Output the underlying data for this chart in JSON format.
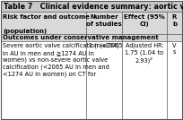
{
  "title": "Table 7   Clinical evidence summary: aortic valve calcium sc",
  "header_col1": "Risk factor and outcome\n\n(population)",
  "header_col2": "Number\nof studies",
  "header_col3": "Effect (95%\nCI)",
  "header_col4": "R\nb",
  "section_header": "Outcomes under conservative management",
  "row_col1": "Severe aortic valve calcification (≥2065\nin AU in men and ≧1274 AU in\nwomen) vs non-severe aortic valve\ncalcification (<2065 AU in men and\n<1274 AU in women) on CT for",
  "row_col2": "1 (n=794)",
  "row_col3": "Adjusted HR:\n1.75 (1.04 to\n2.93)²",
  "row_col4": "V\ns",
  "bg_header": "#d9d9d9",
  "bg_title": "#c8c8c8",
  "bg_white": "#ffffff",
  "bg_section": "#d9d9d9",
  "text_color": "#000000",
  "border_color": "#555555",
  "title_fontsize": 5.8,
  "header_fontsize": 5.0,
  "body_fontsize": 4.8
}
